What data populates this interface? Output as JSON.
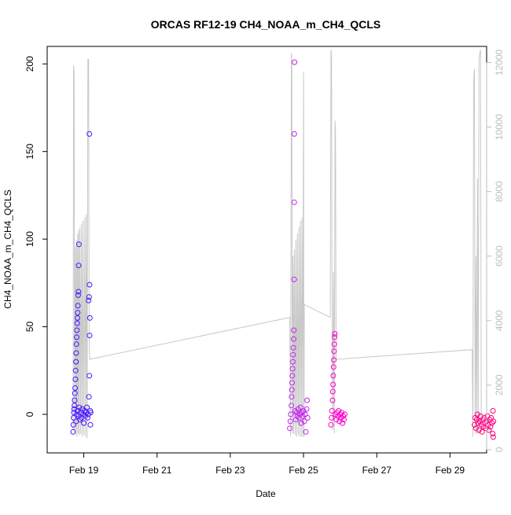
{
  "chart_data": {
    "type": "scatter",
    "title": "ORCAS RF12-19 CH4_NOAA_m_CH4_QCLS",
    "xlabel": "Date",
    "ylabel": "CH4_NOAA_m_CH4_QCLS",
    "xlim": [
      "2016-02-18",
      "2016-03-01"
    ],
    "ylim": [
      -22,
      210
    ],
    "y2lim": [
      -100,
      12500
    ],
    "x_ticks": [
      {
        "value": "2016-02-19",
        "label": "Feb 19"
      },
      {
        "value": "2016-02-21",
        "label": "Feb 21"
      },
      {
        "value": "2016-02-23",
        "label": "Feb 23"
      },
      {
        "value": "2016-02-25",
        "label": "Feb 25"
      },
      {
        "value": "2016-02-27",
        "label": "Feb 27"
      },
      {
        "value": "2016-02-29",
        "label": "Feb 29"
      }
    ],
    "y_ticks": [
      "0",
      "50",
      "100",
      "150",
      "200"
    ],
    "y2_ticks": [
      "0",
      "2000",
      "4000",
      "6000",
      "8000",
      "10000",
      "12000"
    ],
    "grid": false,
    "colors": {
      "rf12": "#4a18ff",
      "rf13": "#c424f0",
      "rf14": "#ff00cc",
      "rf15": "#ff0080",
      "altitude": "#c8c8c8",
      "axis": "#000000",
      "axis2": "#bebebe"
    },
    "series": [
      {
        "color": "#4a18ff",
        "points": [
          [
            "2016-02-18T17:00",
            -10
          ],
          [
            "2016-02-18T17:10",
            -6
          ],
          [
            "2016-02-18T17:20",
            -2
          ],
          [
            "2016-02-18T17:30",
            1
          ],
          [
            "2016-02-18T17:40",
            3
          ],
          [
            "2016-02-18T17:50",
            5
          ],
          [
            "2016-02-18T18:00",
            8
          ],
          [
            "2016-02-18T18:10",
            12
          ],
          [
            "2016-02-18T18:20",
            15
          ],
          [
            "2016-02-18T18:30",
            20
          ],
          [
            "2016-02-18T18:40",
            25
          ],
          [
            "2016-02-18T18:50",
            30
          ],
          [
            "2016-02-18T19:00",
            35
          ],
          [
            "2016-02-18T19:10",
            40
          ],
          [
            "2016-02-18T19:20",
            44
          ],
          [
            "2016-02-18T19:30",
            48
          ],
          [
            "2016-02-18T19:40",
            52
          ],
          [
            "2016-02-18T19:50",
            55
          ],
          [
            "2016-02-18T20:00",
            58
          ],
          [
            "2016-02-18T20:10",
            62
          ],
          [
            "2016-02-18T20:20",
            68
          ],
          [
            "2016-02-18T20:30",
            70
          ],
          [
            "2016-02-18T20:40",
            85
          ],
          [
            "2016-02-18T20:50",
            97
          ],
          [
            "2016-02-18T19:00",
            -4
          ],
          [
            "2016-02-18T19:30",
            0
          ],
          [
            "2016-02-18T20:00",
            2
          ],
          [
            "2016-02-18T20:30",
            -1
          ],
          [
            "2016-02-18T21:00",
            4
          ],
          [
            "2016-02-18T21:30",
            -3
          ],
          [
            "2016-02-18T22:00",
            1
          ],
          [
            "2016-02-18T22:30",
            -2
          ],
          [
            "2016-02-18T23:00",
            3
          ],
          [
            "2016-02-18T23:30",
            0
          ],
          [
            "2016-02-19T00:00",
            -5
          ],
          [
            "2016-02-19T00:30",
            2
          ],
          [
            "2016-02-19T01:00",
            -1
          ],
          [
            "2016-02-19T01:30",
            1
          ],
          [
            "2016-02-19T02:00",
            4
          ],
          [
            "2016-02-19T02:30",
            -2
          ],
          [
            "2016-02-19T03:00",
            0
          ],
          [
            "2016-02-19T03:20",
            10
          ],
          [
            "2016-02-19T03:40",
            22
          ],
          [
            "2016-02-19T03:50",
            45
          ],
          [
            "2016-02-19T04:00",
            55
          ],
          [
            "2016-02-19T03:10",
            65
          ],
          [
            "2016-02-19T03:30",
            67
          ],
          [
            "2016-02-19T03:45",
            74
          ],
          [
            "2016-02-19T03:40",
            160
          ],
          [
            "2016-02-19T04:10",
            2
          ],
          [
            "2016-02-19T04:20",
            -6
          ],
          [
            "2016-02-19T04:30",
            1
          ]
        ]
      },
      {
        "color": "#c424f0",
        "points": [
          [
            "2016-02-24T15:00",
            -8
          ],
          [
            "2016-02-24T15:20",
            -4
          ],
          [
            "2016-02-24T15:40",
            0
          ],
          [
            "2016-02-24T16:00",
            5
          ],
          [
            "2016-02-24T16:10",
            10
          ],
          [
            "2016-02-24T16:20",
            14
          ],
          [
            "2016-02-24T16:30",
            18
          ],
          [
            "2016-02-24T16:40",
            22
          ],
          [
            "2016-02-24T16:50",
            26
          ],
          [
            "2016-02-24T17:00",
            30
          ],
          [
            "2016-02-24T17:10",
            34
          ],
          [
            "2016-02-24T17:20",
            38
          ],
          [
            "2016-02-24T17:30",
            43
          ],
          [
            "2016-02-24T17:40",
            48
          ],
          [
            "2016-02-24T17:50",
            77
          ],
          [
            "2016-02-24T17:55",
            121
          ],
          [
            "2016-02-24T18:00",
            160
          ],
          [
            "2016-02-24T18:05",
            201
          ],
          [
            "2016-02-24T18:30",
            2
          ],
          [
            "2016-02-24T19:00",
            -3
          ],
          [
            "2016-02-24T19:30",
            1
          ],
          [
            "2016-02-24T20:00",
            -1
          ],
          [
            "2016-02-24T20:30",
            3
          ],
          [
            "2016-02-24T21:00",
            -2
          ],
          [
            "2016-02-24T21:30",
            0
          ],
          [
            "2016-02-24T22:00",
            4
          ],
          [
            "2016-02-24T22:30",
            -5
          ],
          [
            "2016-02-24T23:00",
            1
          ],
          [
            "2016-02-24T23:30",
            -1
          ],
          [
            "2016-02-25T00:00",
            2
          ],
          [
            "2016-02-25T00:30",
            -4
          ],
          [
            "2016-02-25T01:00",
            0
          ],
          [
            "2016-02-25T01:30",
            -10
          ],
          [
            "2016-02-25T02:00",
            3
          ],
          [
            "2016-02-25T02:20",
            8
          ],
          [
            "2016-02-25T02:40",
            -2
          ]
        ]
      },
      {
        "color": "#ff00cc",
        "points": [
          [
            "2016-02-25T18:00",
            -6
          ],
          [
            "2016-02-25T18:20",
            -2
          ],
          [
            "2016-02-25T18:40",
            2
          ],
          [
            "2016-02-25T19:00",
            8
          ],
          [
            "2016-02-25T19:10",
            13
          ],
          [
            "2016-02-25T19:20",
            17
          ],
          [
            "2016-02-25T19:30",
            22
          ],
          [
            "2016-02-25T19:40",
            27
          ],
          [
            "2016-02-25T19:50",
            31
          ],
          [
            "2016-02-25T20:00",
            36
          ],
          [
            "2016-02-25T20:10",
            40
          ],
          [
            "2016-02-25T20:20",
            44
          ],
          [
            "2016-02-25T20:30",
            46
          ],
          [
            "2016-02-25T21:00",
            0
          ],
          [
            "2016-02-25T21:30",
            -3
          ],
          [
            "2016-02-25T22:00",
            1
          ],
          [
            "2016-02-25T22:30",
            -1
          ],
          [
            "2016-02-25T23:00",
            2
          ],
          [
            "2016-02-25T23:30",
            -4
          ],
          [
            "2016-02-26T00:00",
            0
          ],
          [
            "2016-02-26T00:30",
            -2
          ],
          [
            "2016-02-26T01:00",
            1
          ],
          [
            "2016-02-26T01:30",
            -5
          ],
          [
            "2016-02-26T02:00",
            -1
          ],
          [
            "2016-02-26T02:30",
            -3
          ],
          [
            "2016-02-26T03:00",
            0
          ]
        ]
      },
      {
        "color": "#ff0080",
        "points": [
          [
            "2016-02-29T16:00",
            -6
          ],
          [
            "2016-02-29T16:30",
            -2
          ],
          [
            "2016-02-29T17:00",
            -8
          ],
          [
            "2016-02-29T17:30",
            -3
          ],
          [
            "2016-02-29T18:00",
            0
          ],
          [
            "2016-02-29T18:30",
            -5
          ],
          [
            "2016-02-29T19:00",
            -9
          ],
          [
            "2016-02-29T19:30",
            -4
          ],
          [
            "2016-02-29T20:00",
            -1
          ],
          [
            "2016-02-29T20:30",
            -6
          ],
          [
            "2016-02-29T21:00",
            -10
          ],
          [
            "2016-02-29T21:30",
            -3
          ],
          [
            "2016-02-29T22:00",
            -7
          ],
          [
            "2016-02-29T22:30",
            -2
          ],
          [
            "2016-02-29T23:00",
            -5
          ],
          [
            "2016-02-29T23:30",
            -8
          ],
          [
            "2016-03-01T00:00",
            -4
          ],
          [
            "2016-03-01T00:30",
            -1
          ],
          [
            "2016-03-01T01:00",
            -6
          ],
          [
            "2016-03-01T01:30",
            -9
          ],
          [
            "2016-03-01T02:00",
            -3
          ],
          [
            "2016-03-01T02:30",
            -7
          ],
          [
            "2016-03-01T03:00",
            -2
          ],
          [
            "2016-03-01T03:30",
            -5
          ],
          [
            "2016-03-01T04:00",
            -11
          ],
          [
            "2016-03-01T04:10",
            2
          ],
          [
            "2016-03-01T04:20",
            -13
          ],
          [
            "2016-03-01T04:30",
            -4
          ]
        ]
      }
    ],
    "altitude_line": {
      "color": "#c8c8c8",
      "points": [
        [
          "2016-02-18T17:00",
          600
        ],
        [
          "2016-02-18T17:20",
          11900
        ],
        [
          "2016-02-18T17:40",
          11700
        ],
        [
          "2016-02-18T18:00",
          500
        ],
        [
          "2016-02-18T18:30",
          6300
        ],
        [
          "2016-02-18T18:50",
          600
        ],
        [
          "2016-02-18T19:10",
          6500
        ],
        [
          "2016-02-18T19:30",
          400
        ],
        [
          "2016-02-18T20:00",
          6700
        ],
        [
          "2016-02-18T20:20",
          500
        ],
        [
          "2016-02-18T20:40",
          6800
        ],
        [
          "2016-02-18T21:00",
          450
        ],
        [
          "2016-02-18T21:30",
          6900
        ],
        [
          "2016-02-18T22:00",
          500
        ],
        [
          "2016-02-18T22:30",
          7000
        ],
        [
          "2016-02-18T23:00",
          400
        ],
        [
          "2016-02-18T23:30",
          7100
        ],
        [
          "2016-02-19T00:00",
          450
        ],
        [
          "2016-02-19T00:40",
          7200
        ],
        [
          "2016-02-19T01:10",
          400
        ],
        [
          "2016-02-19T01:40",
          7300
        ],
        [
          "2016-02-19T02:10",
          350
        ],
        [
          "2016-02-19T02:40",
          12100
        ],
        [
          "2016-02-19T03:10",
          12100
        ],
        [
          "2016-02-19T03:30",
          3500
        ],
        [
          "2016-02-19T03:50",
          2800
        ],
        [
          "2016-02-24T15:00",
          4100
        ],
        [
          "2016-02-24T15:30",
          400
        ],
        [
          "2016-02-24T16:00",
          12300
        ],
        [
          "2016-02-24T16:20",
          12000
        ],
        [
          "2016-02-24T16:40",
          500
        ],
        [
          "2016-02-24T17:10",
          6000
        ],
        [
          "2016-02-24T17:30",
          500
        ],
        [
          "2016-02-24T18:00",
          6200
        ],
        [
          "2016-02-24T18:30",
          450
        ],
        [
          "2016-02-24T19:00",
          6500
        ],
        [
          "2016-02-24T19:30",
          400
        ],
        [
          "2016-02-24T20:00",
          6700
        ],
        [
          "2016-02-24T20:30",
          450
        ],
        [
          "2016-02-24T21:00",
          6900
        ],
        [
          "2016-02-24T21:30",
          400
        ],
        [
          "2016-02-24T22:00",
          7100
        ],
        [
          "2016-02-24T22:30",
          400
        ],
        [
          "2016-02-24T23:00",
          7200
        ],
        [
          "2016-02-24T23:30",
          400
        ],
        [
          "2016-02-25T00:00",
          11700
        ],
        [
          "2016-02-25T00:20",
          400
        ],
        [
          "2016-02-25T00:30",
          4500
        ],
        [
          "2016-02-25T17:30",
          4100
        ],
        [
          "2016-02-25T18:00",
          12400
        ],
        [
          "2016-02-25T18:20",
          12200
        ],
        [
          "2016-02-25T18:40",
          5700
        ],
        [
          "2016-02-25T19:10",
          600
        ],
        [
          "2016-02-25T19:40",
          5500
        ],
        [
          "2016-02-25T20:10",
          500
        ],
        [
          "2016-02-25T20:40",
          10200
        ],
        [
          "2016-02-25T21:00",
          9800
        ],
        [
          "2016-02-25T21:20",
          2800
        ],
        [
          "2016-02-29T14:30",
          3100
        ],
        [
          "2016-02-29T15:00",
          400
        ],
        [
          "2016-02-29T15:30",
          11400
        ],
        [
          "2016-02-29T16:00",
          11800
        ],
        [
          "2016-02-29T16:30",
          500
        ],
        [
          "2016-02-29T17:00",
          6000
        ],
        [
          "2016-02-29T17:30",
          500
        ],
        [
          "2016-02-29T18:00",
          8400
        ],
        [
          "2016-02-29T18:30",
          500
        ],
        [
          "2016-02-29T19:00",
          12000
        ],
        [
          "2016-02-29T19:30",
          12300
        ],
        [
          "2016-02-29T20:00",
          12400
        ],
        [
          "2016-02-29T20:30",
          600
        ]
      ]
    }
  }
}
